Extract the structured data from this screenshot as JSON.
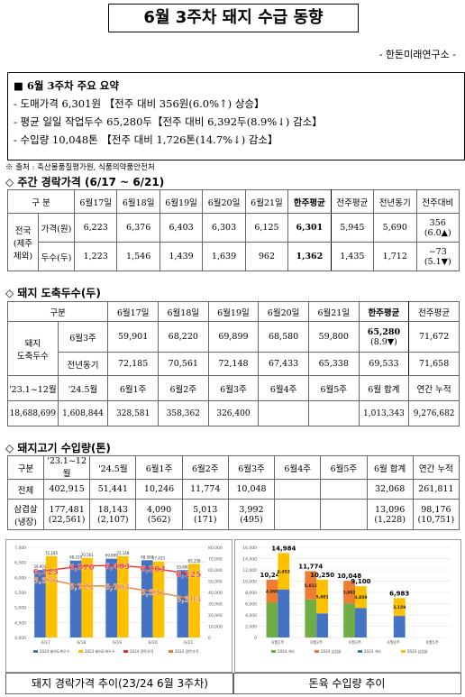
{
  "header": {
    "title": "6월 3주차 돼지 수급 동향",
    "org": "- 한돈미래연구소 -"
  },
  "summary": {
    "heading": "■ 6월 3주차 주요 요약",
    "lines": [
      "- 도매가격 6,301원 【전주 대비 356원(6.0%↑) 상승】",
      "- 평균 일일 작업두수 65,280두【전주 대비 6,392두(8.9%↓) 감소】",
      "- 수입량 10,048톤 【전주 대비 1,726톤(14.7%↓) 감소】"
    ]
  },
  "source": "※ 출처 : 축산물품질평가원, 식품의약품안전처",
  "price_table": {
    "title": "◇ 주간 경락가격 (6/17 ~ 6/21)",
    "head": [
      "구 분",
      "6월17일",
      "6월18일",
      "6월19일",
      "6월20일",
      "6월21일",
      "한주평균",
      "전주평균",
      "전년동기",
      "전주대비"
    ],
    "region": [
      "전국",
      "(제주",
      "제외)"
    ],
    "rows": [
      {
        "label": "가격(원)",
        "values": [
          "6,223",
          "6,376",
          "6,403",
          "6,303",
          "6,125",
          "6,301",
          "5,945",
          "5,690"
        ],
        "diff": "356",
        "diff_note": "(6.0▲)"
      },
      {
        "label": "두수(두)",
        "values": [
          "1,223",
          "1,546",
          "1,439",
          "1,639",
          "962",
          "1,362",
          "1,435",
          "1,712"
        ],
        "diff": "−73",
        "diff_note": "(5.1▼)"
      }
    ]
  },
  "slaughter_table": {
    "title": "◇ 돼지 도축두수(두)",
    "head": [
      "구분",
      "6월17일",
      "6월18일",
      "6월19일",
      "6월20일",
      "6월21일",
      "한주평균",
      "전주평균"
    ],
    "label": [
      "돼지",
      "도축두수"
    ],
    "rows": [
      {
        "label": "6월3주",
        "values": [
          "59,901",
          "68,220",
          "69,899",
          "68,580",
          "59,800"
        ],
        "avg": "65,280",
        "avg_note": "(8.9▼)",
        "prev": "71,672"
      },
      {
        "label": "전년동기",
        "values": [
          "72,185",
          "70,561",
          "72,148",
          "67,433",
          "65,338"
        ],
        "avg": "69,533",
        "prev": "71,658"
      }
    ],
    "month_head": [
      "'23.1~12월",
      "'24.5월",
      "6월1주",
      "6월2주",
      "6월3주",
      "6월4주",
      "6월5주",
      "6월 합계",
      "연간 누적"
    ],
    "month_values": [
      "18,688,699",
      "1,608,844",
      "328,581",
      "358,362",
      "326,400",
      null,
      null,
      "1,013,343",
      "9,276,682"
    ]
  },
  "import_table": {
    "title": "◇ 돼지고기 수입량(톤)",
    "head": [
      "구분",
      "'23.1~12월",
      "'24.5월",
      "6월1주",
      "6월2주",
      "6월3주",
      "6월4주",
      "6월5주",
      "6월 합계",
      "연간 누적"
    ],
    "rows": [
      {
        "label": [
          "전체"
        ],
        "values": [
          "402,915",
          "51,441",
          "10,246",
          "11,774",
          "10,048",
          null,
          null,
          "32,068",
          "261,811"
        ]
      },
      {
        "label": [
          "삼겹살",
          "(냉장)"
        ],
        "values": [
          "177,481",
          "18,143",
          "4,090",
          "5,013",
          "3,992",
          null,
          null,
          "13,096",
          "98,176"
        ],
        "sub": [
          "(22,561)",
          "(2,107)",
          "(562)",
          "(171)",
          "(495)",
          null,
          null,
          "(1,228)",
          "(10,751)"
        ]
      }
    ]
  },
  "chart_data": [
    {
      "type": "combo",
      "title": "돼지 경락가격 추이(23/24 6월 3주차)",
      "categories": [
        "6/17",
        "6/18",
        "6/19",
        "6/20",
        "6/21"
      ],
      "ylim": [
        4000,
        7000
      ],
      "yticks": [
        {
          "value": 4000,
          "label": "4,000"
        },
        {
          "value": 4500,
          "label": "4,500"
        },
        {
          "value": 5000,
          "label": "5,000"
        },
        {
          "value": 5500,
          "label": "5,500"
        },
        {
          "value": 6000,
          "label": "6,000"
        },
        {
          "value": 6500,
          "label": "6,500"
        },
        {
          "value": 7000,
          "label": "7,000"
        }
      ],
      "y2lim": [
        0,
        80000
      ],
      "y2ticks": [
        0,
        {
          "value": 10000,
          "label": "10,000"
        },
        {
          "value": 20000,
          "label": "20,000"
        },
        {
          "value": 30000,
          "label": "30,000"
        },
        {
          "value": 40000,
          "label": "40,000"
        },
        {
          "value": 50000,
          "label": "50,000"
        },
        {
          "value": 60000,
          "label": "60,000"
        },
        {
          "value": 70000,
          "label": "70,000"
        },
        {
          "value": 80000,
          "label": "80,000"
        }
      ],
      "series": [
        {
          "name": "2024 돼지도축두수",
          "kind": "bar",
          "axis": "y2",
          "color": "#4472c4",
          "values": [
            59901,
            68220,
            69899,
            68580,
            59800
          ],
          "value_labels": [
            "59,901",
            "68,220",
            "69,899",
            "68,580",
            "59,800"
          ]
        },
        {
          "name": "2023 돼지도축두수",
          "kind": "bar",
          "axis": "y2",
          "color": "#ffc000",
          "values": [
            72185,
            70561,
            72148,
            67433,
            65338
          ],
          "value_labels": [
            "72,185",
            "70,561",
            "72,148",
            "67,433",
            "65,338"
          ]
        },
        {
          "name": "2024 경락가격",
          "kind": "line",
          "color": "#e03030",
          "values": [
            6223,
            6376,
            6403,
            6303,
            6125
          ],
          "value_labels": [
            "6,223",
            "6,376",
            "6,403",
            "6,303",
            "6,125"
          ]
        },
        {
          "name": "2023 경락가격",
          "kind": "line",
          "color": "#ed7d31",
          "values": [
            5936,
            5721,
            5704,
            5531,
            5303
          ],
          "value_labels": [
            "5,936",
            "5,721",
            "5,704",
            "5,531",
            "5,303"
          ]
        }
      ]
    },
    {
      "type": "stacked_bar",
      "title": "돈육 수입량 추이",
      "categories": [
        "6월1주",
        "6월2주",
        "6월3주",
        "6월4주",
        "6월5주"
      ],
      "ylim": [
        0,
        16000
      ],
      "yticks": [
        0,
        {
          "value": 2000,
          "label": "2,000"
        },
        {
          "value": 4000,
          "label": "4,000"
        },
        {
          "value": 6000,
          "label": "6,000"
        },
        {
          "value": 8000,
          "label": "8,000"
        },
        {
          "value": 10000,
          "label": "10,000"
        },
        {
          "value": 12000,
          "label": "12,000"
        },
        {
          "value": 14000,
          "label": "14,000"
        },
        {
          "value": 16000,
          "label": "16,000"
        }
      ],
      "series": [
        {
          "name": "2024 기타",
          "stack": 0,
          "color": "#70ad47",
          "values": [
            6156,
            6761,
            6056,
            null,
            null
          ]
        },
        {
          "name": "2024 삼겹살",
          "stack": 0,
          "color": "#ed7d31",
          "values": [
            4090,
            5013,
            3992,
            null,
            null
          ],
          "value_labels": [
            "4,090",
            "5,013",
            "3,992",
            null,
            null
          ]
        },
        {
          "name": "2023 기타",
          "stack": 1,
          "color": "#4472c4",
          "values": [
            8532,
            4269,
            5241,
            3824,
            null
          ]
        },
        {
          "name": "2023 삼겹살",
          "stack": 1,
          "color": "#ffc000",
          "values": [
            6452,
            5981,
            3859,
            3159,
            null
          ],
          "value_labels": [
            "6,452",
            "5,981",
            "3,859",
            "3,159",
            null
          ]
        }
      ],
      "totals": [
        [
          "10,246",
          "11,774",
          "10,048",
          null,
          null
        ],
        [
          "14,984",
          "10,250",
          "9,100",
          "6,983",
          null
        ]
      ]
    }
  ]
}
